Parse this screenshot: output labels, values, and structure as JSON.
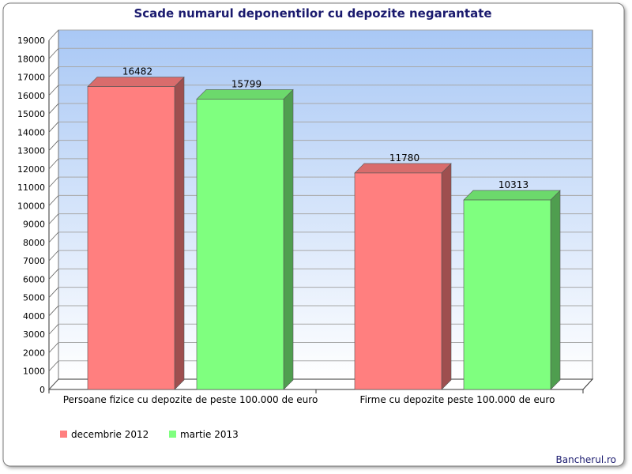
{
  "chart_data": {
    "type": "bar",
    "title": "Scade numarul deponentilor cu depozite negarantate",
    "xlabel": "",
    "ylabel": "",
    "categories": [
      "Persoane fizice cu depozite de peste 100.000 de euro",
      "Firme cu depozite peste 100.000 de euro"
    ],
    "series": [
      {
        "name": "decembrie 2012",
        "values": [
          16482,
          11780
        ],
        "color": "#ff7f7f"
      },
      {
        "name": "martie 2013",
        "values": [
          15799,
          10313
        ],
        "color": "#7fff7f"
      }
    ],
    "ylim": [
      0,
      19000
    ],
    "ytick_step": 1000,
    "grid": true,
    "legend": "bottom-left",
    "data_labels": true,
    "three_d": true
  },
  "credit": "Bancherul.ro",
  "colors": {
    "title": "#1a1a6e",
    "plot_bg_top": "#a9c8f5",
    "plot_bg_bottom": "#ffffff",
    "grid": "#a8a8a8",
    "credit": "#1a1a6e"
  }
}
